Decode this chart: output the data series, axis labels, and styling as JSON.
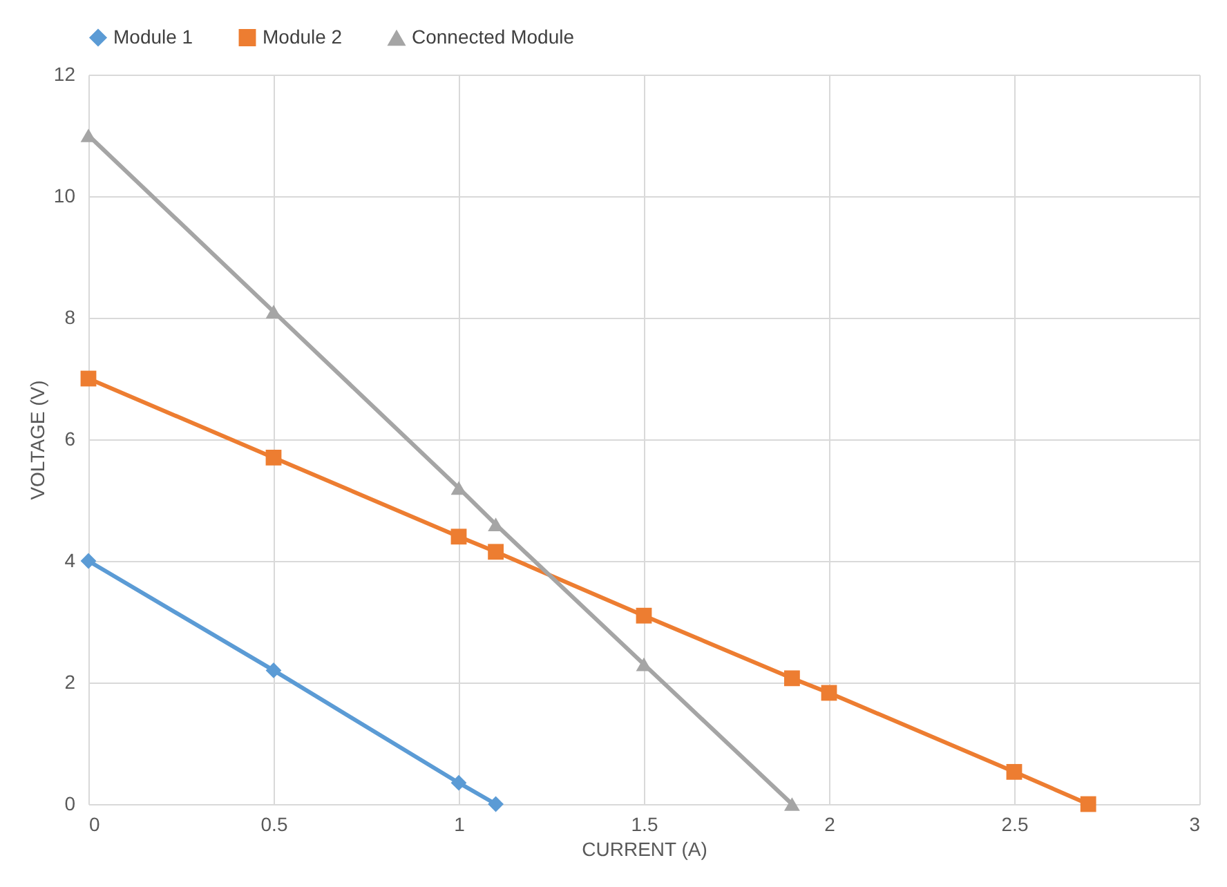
{
  "chart_data": {
    "type": "line",
    "xlabel": "CURRENT (A)",
    "ylabel": "VOLTAGE (V)",
    "xlim": [
      0,
      3
    ],
    "xticks": [
      {
        "value": 0,
        "label": "0"
      },
      0.5,
      {
        "value": 1,
        "label": "1"
      },
      1.5,
      {
        "value": 2,
        "label": "2"
      },
      2.5,
      {
        "value": 3,
        "label": "3"
      }
    ],
    "ylim": [
      0,
      12
    ],
    "yticks": [
      0,
      2,
      4,
      6,
      8,
      10,
      12
    ],
    "grid": true,
    "legend": "top",
    "line_style": "solid",
    "series": [
      {
        "name": "Module 1",
        "color": "#5b9bd5",
        "marker": "diamond",
        "x": [
          0,
          0.5,
          1,
          1.1
        ],
        "values": [
          4,
          2.2,
          0.35,
          0
        ]
      },
      {
        "name": "Module 2",
        "color": "#ed7d31",
        "marker": "square",
        "x": [
          0,
          0.5,
          1,
          1.1,
          1.5,
          1.9,
          2,
          2.5,
          2.7
        ],
        "values": [
          7,
          5.7,
          4.4,
          4.15,
          3.1,
          2.07,
          1.83,
          0.53,
          0
        ]
      },
      {
        "name": "Connected Module",
        "color": "#a5a5a5",
        "marker": "triangle",
        "x": [
          0,
          0.5,
          1,
          1.1,
          1.5,
          1.9
        ],
        "values": [
          11,
          8.1,
          5.2,
          4.6,
          2.3,
          0
        ]
      }
    ]
  }
}
